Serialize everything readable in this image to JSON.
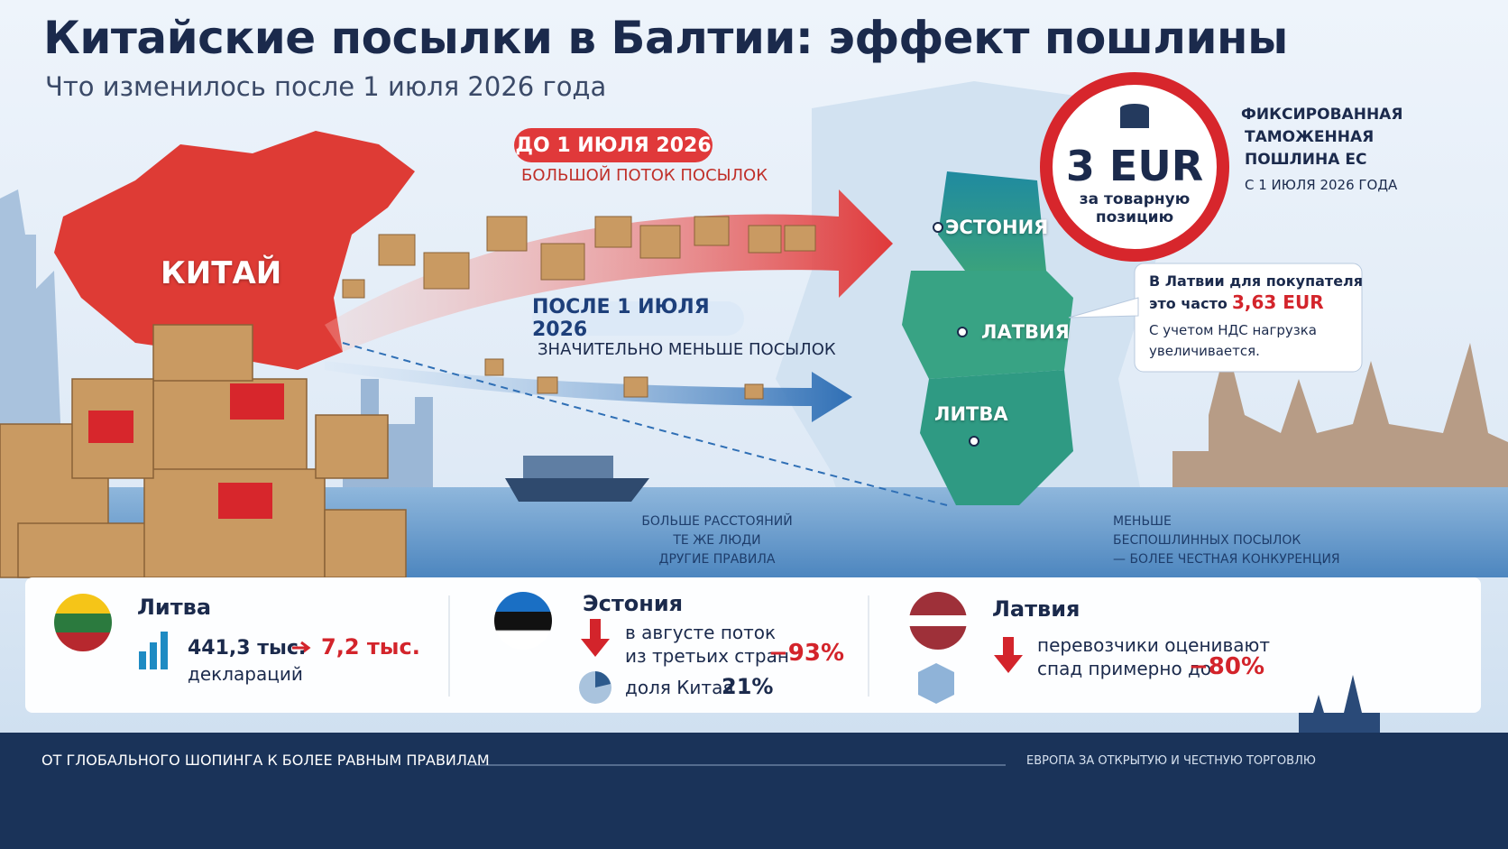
{
  "header": {
    "title": "Китайские посылки в Балтии: эффект пошлины",
    "subtitle": "Что изменилось после 1 июля 2026 года"
  },
  "map": {
    "china": "КИТАЙ",
    "estonia": "ЭСТОНИЯ",
    "latvia": "ЛАТВИЯ",
    "lithuania": "ЛИТВА"
  },
  "flows": [
    {
      "badge": "ДО 1 ИЮЛЯ 2026",
      "caption": "БОЛЬШОЙ ПОТОК ПОСЫЛОК"
    },
    {
      "badge": "ПОСЛЕ 1 ИЮЛЯ 2026",
      "caption": "ЗНАЧИТЕЛЬНО МЕНЬШЕ ПОСЫЛОК"
    }
  ],
  "duty": {
    "amount": "3 EUR",
    "unit_lines": [
      "за товарную",
      "позицию"
    ],
    "heading_lines": [
      "ФИКСИРОВАННАЯ",
      "ТАМОЖЕННАЯ",
      "ПОШЛИНА ЕС"
    ],
    "date": "С 1 ИЮЛЯ 2026 ГОДА"
  },
  "callout": {
    "lines": [
      "В Латвии для покупателя",
      "это часто"
    ],
    "highlight": "3,63 EUR",
    "note_lines": [
      "С учетом НДС нагрузка",
      "увеличивается."
    ]
  },
  "notes": {
    "sea": [
      "БОЛЬШЕ РАССТОЯНИЙ",
      "ТЕ ЖЕ ЛЮДИ",
      "ДРУГИЕ ПРАВИЛА"
    ],
    "baltic": [
      "МЕНЬШЕ",
      "БЕСПОШЛИННЫХ ПОСЫЛОК",
      "— БОЛЕЕ ЧЕСТНАЯ КОНКУРЕНЦИЯ"
    ]
  },
  "stats": [
    {
      "country": "Литва",
      "from": "441,3 тыс.",
      "to": "7,2 тыс.",
      "unit": "деклараций"
    },
    {
      "country": "Эстония",
      "lines": [
        "в августе поток",
        "из третьих стран"
      ],
      "change": "−93%",
      "share_label": "доля Китая",
      "share": "21%"
    },
    {
      "country": "Латвия",
      "lines": [
        "перевозчики оценивают",
        "спад примерно до"
      ],
      "change": "−80%"
    }
  ],
  "footer": {
    "left": "ОТ ГЛОБАЛЬНОГО ШОПИНГА К БОЛЕЕ РАВНЫМ ПРАВИЛАМ",
    "right": "ЕВРОПА ЗА ОТКРЫТУЮ И ЧЕСТНУЮ ТОРГОВЛЮ"
  }
}
